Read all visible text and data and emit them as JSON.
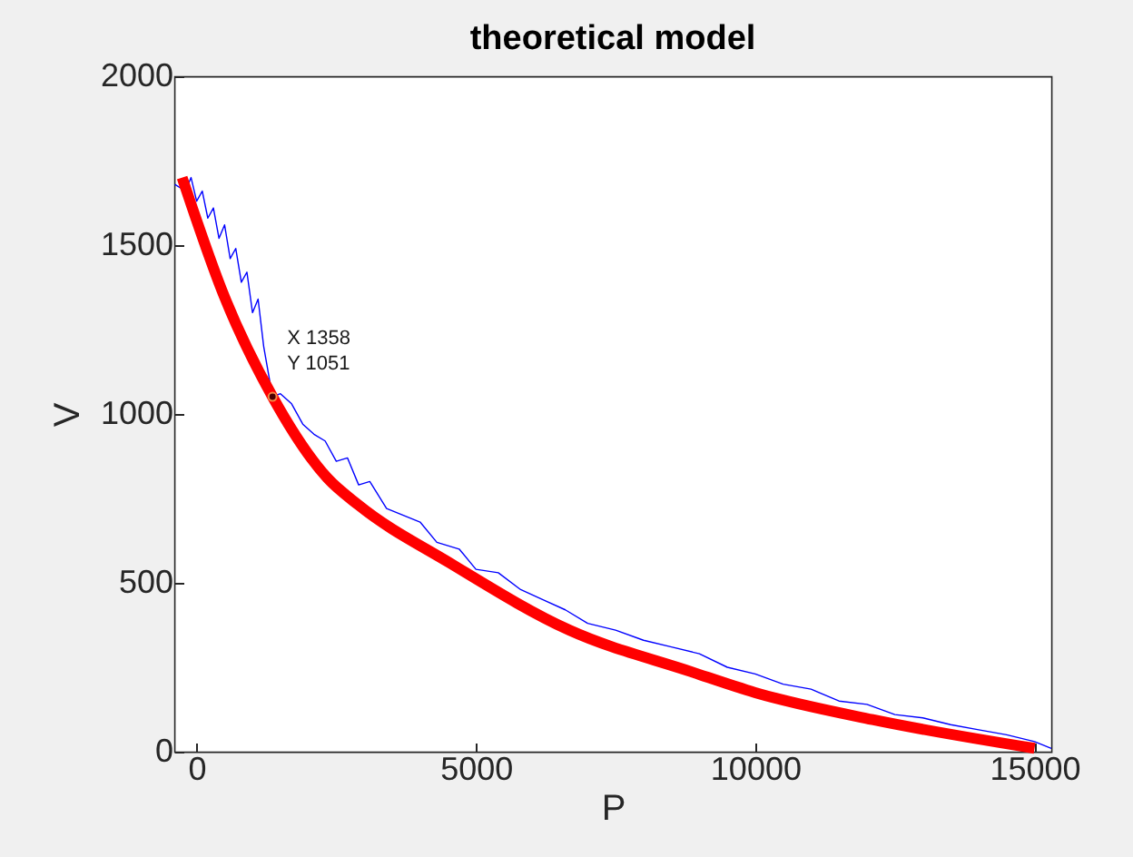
{
  "chart_data": {
    "type": "line",
    "title": "theoretical model",
    "xlabel": "P",
    "ylabel": "V",
    "xlim": [
      -400,
      15300
    ],
    "xticks": [
      0,
      5000,
      10000,
      15000
    ],
    "ylim": [
      0,
      2000
    ],
    "yticks": [
      0,
      500,
      1000,
      1500,
      2000
    ],
    "series": [
      {
        "type": "line",
        "color": "#0000ff",
        "x": [
          -390,
          -200,
          -100,
          0,
          100,
          200,
          300,
          400,
          500,
          600,
          700,
          800,
          900,
          1000,
          1100,
          1200,
          1358,
          1500,
          1700,
          1900,
          2100,
          2300,
          2500,
          2700,
          2900,
          3100,
          3400,
          3700,
          4000,
          4300,
          4700,
          5000,
          5400,
          5800,
          6200,
          6600,
          7000,
          7500,
          8000,
          8500,
          9000,
          9500,
          10000,
          10500,
          11000,
          11500,
          12000,
          12500,
          13000,
          13500,
          14000,
          14500,
          15000,
          15300
        ],
        "values": [
          1680,
          1660,
          1700,
          1630,
          1660,
          1580,
          1610,
          1520,
          1560,
          1460,
          1490,
          1390,
          1420,
          1300,
          1340,
          1200,
          1051,
          1060,
          1030,
          970,
          940,
          920,
          860,
          870,
          790,
          800,
          720,
          700,
          680,
          620,
          600,
          540,
          530,
          480,
          450,
          420,
          380,
          360,
          330,
          310,
          290,
          250,
          230,
          200,
          185,
          150,
          140,
          110,
          100,
          80,
          65,
          50,
          30,
          10
        ]
      },
      {
        "type": "line",
        "color": "#ff0000",
        "x": [
          -260,
          490,
          1358,
          2342,
          2900,
          4520,
          6670,
          8850,
          10000,
          12100,
          15000
        ],
        "values": [
          1700,
          1350,
          1051,
          810,
          730,
          560,
          360,
          237,
          175,
          95,
          10
        ]
      }
    ],
    "annotations": [
      {
        "text": "X 1358",
        "x": 1358,
        "y": 1051
      },
      {
        "text": "Y 1051",
        "x": 1358,
        "y": 1051
      }
    ],
    "grid": false,
    "marker": "none",
    "line_style": "solid"
  }
}
